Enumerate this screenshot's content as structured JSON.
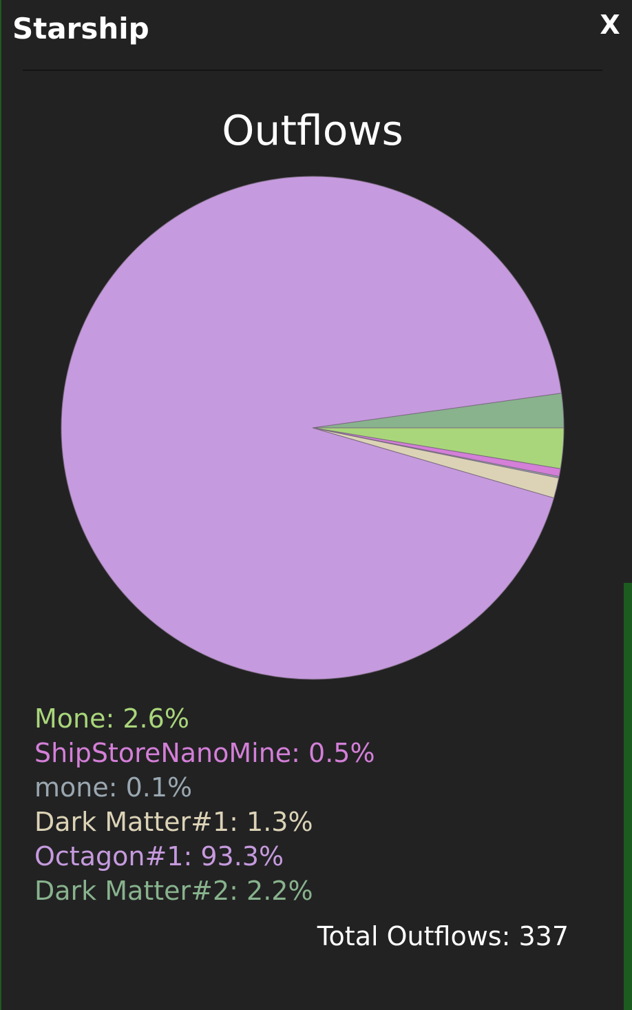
{
  "window": {
    "title": "Starship",
    "close_label": "X"
  },
  "chart_data": {
    "type": "pie",
    "title": "Outflows",
    "slices": [
      {
        "label": "Mone",
        "value": 2.6,
        "display": "Mone: 2.6%",
        "color": "#a9d67a"
      },
      {
        "label": "ShipStoreNanoMine",
        "value": 0.5,
        "display": "ShipStoreNanoMine: 0.5%",
        "color": "#d47fd8"
      },
      {
        "label": "mone",
        "value": 0.1,
        "display": "mone: 0.1%",
        "color": "#9aa7b0"
      },
      {
        "label": "Dark Matter#1",
        "value": 1.3,
        "display": "Dark Matter#1: 1.3%",
        "color": "#dcd3b6"
      },
      {
        "label": "Octagon#1",
        "value": 93.3,
        "display": "Octagon#1: 93.3%",
        "color": "#c69ade"
      },
      {
        "label": "Dark Matter#2",
        "value": 2.2,
        "display": "Dark Matter#2: 2.2%",
        "color": "#88b38d"
      }
    ],
    "start_angle_deg": 0,
    "direction": "clockwise",
    "total_label": "Total Outflows: 337"
  }
}
